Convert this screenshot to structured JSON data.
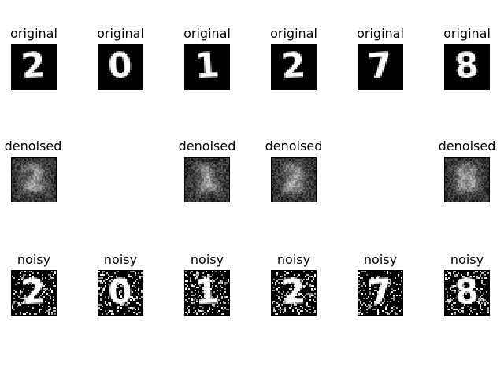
{
  "rows": [
    {
      "kind": "original",
      "label": "original",
      "items": [
        {
          "label": "original",
          "digit": "2"
        },
        {
          "label": "original",
          "digit": "0"
        },
        {
          "label": "original",
          "digit": "1"
        },
        {
          "label": "original",
          "digit": "2"
        },
        {
          "label": "original",
          "digit": "7"
        },
        {
          "label": "original",
          "digit": "8"
        }
      ]
    },
    {
      "kind": "denoised",
      "label": "denoised",
      "items": [
        {
          "label": "denoised",
          "digit": "2"
        },
        {
          "label": "",
          "digit": ""
        },
        {
          "label": "denoised",
          "digit": "1"
        },
        {
          "label": "denoised",
          "digit": "2"
        },
        {
          "label": "",
          "digit": ""
        },
        {
          "label": "denoised",
          "digit": "8"
        }
      ]
    },
    {
      "kind": "noisy",
      "label": "noisy",
      "items": [
        {
          "label": "noisy",
          "digit": "2"
        },
        {
          "label": "noisy",
          "digit": "0"
        },
        {
          "label": "noisy",
          "digit": "1"
        },
        {
          "label": "noisy",
          "digit": "2"
        },
        {
          "label": "noisy",
          "digit": "7"
        },
        {
          "label": "noisy",
          "digit": "8"
        }
      ]
    }
  ]
}
